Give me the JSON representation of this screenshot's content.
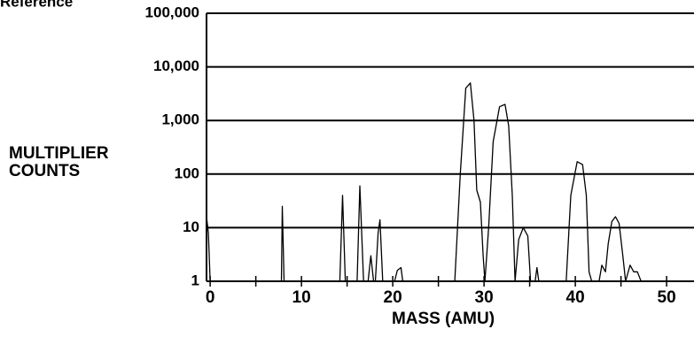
{
  "chart_data": {
    "type": "line",
    "header": "Reference",
    "y_label": [
      "MULTIPLIER",
      "COUNTS"
    ],
    "x_label": "MASS (AMU)",
    "log_y": true,
    "grid": true,
    "color": "#000000",
    "xlim": [
      -0.4,
      53
    ],
    "xticks": [
      0,
      10,
      20,
      30,
      40,
      50
    ],
    "xminor_ticks": [
      5,
      15,
      25,
      35,
      45
    ],
    "ylim": [
      1,
      100000
    ],
    "yticks": [
      1,
      10,
      100,
      {
        "value": 1000,
        "label": "1,000"
      },
      {
        "value": 10000,
        "label": "10,000"
      },
      {
        "value": 100000,
        "label": "100,000"
      }
    ],
    "x": [
      -0.4,
      -0.2,
      0,
      7.8,
      7.9,
      8.1,
      14.2,
      14.5,
      14.8,
      16.1,
      16.4,
      16.8,
      17.3,
      17.6,
      17.9,
      18.1,
      18.4,
      18.6,
      18.9,
      20.2,
      20.5,
      20.9,
      21.1,
      26.8,
      27.4,
      28,
      28.5,
      28.9,
      29.2,
      29.6,
      29.9,
      30.1,
      30.5,
      31,
      31.7,
      32.3,
      32.7,
      33.1,
      33.4,
      33.8,
      34.3,
      34.8,
      35.1,
      35.6,
      35.8,
      36.0,
      39,
      39.5,
      40.2,
      40.8,
      41.2,
      41.5,
      41.8,
      42.6,
      42.9,
      43.3,
      43.6,
      44.0,
      44.4,
      44.8,
      45.2,
      45.5,
      46.0,
      46.4,
      46.8,
      47.2
    ],
    "values": [
      16,
      8,
      1,
      1,
      25,
      1,
      1,
      40,
      1,
      1,
      60,
      1,
      1,
      3,
      1,
      1,
      8,
      14,
      1,
      1,
      1.6,
      1.8,
      1,
      1,
      100,
      4000,
      5000,
      1000,
      50,
      30,
      3,
      1,
      10,
      400,
      1800,
      2000,
      800,
      40,
      1,
      6,
      10,
      7,
      1,
      1,
      1.8,
      1,
      1,
      40,
      170,
      150,
      40,
      1.5,
      1,
      1,
      2,
      1.5,
      5,
      13,
      16,
      12,
      3,
      1,
      2,
      1.5,
      1.5,
      1
    ]
  }
}
